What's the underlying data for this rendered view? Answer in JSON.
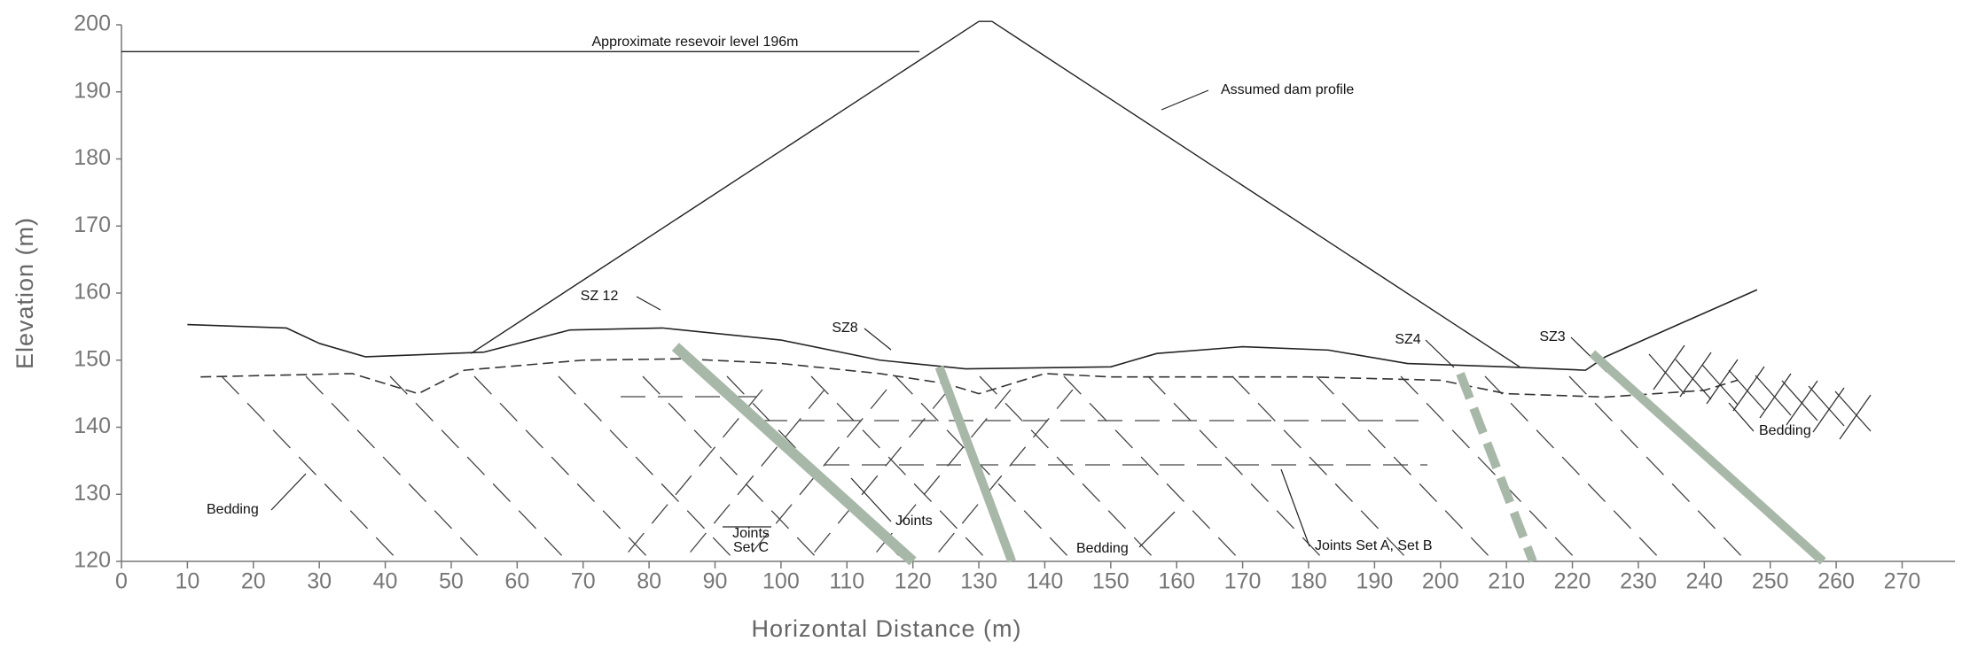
{
  "chart_data": {
    "type": "line",
    "x_label": "Horizontal Distance (m)",
    "y_label": "Elevation (m)",
    "xlim": [
      0,
      278
    ],
    "ylim": [
      120,
      200
    ],
    "xticks": [
      0,
      10,
      20,
      30,
      40,
      50,
      60,
      70,
      80,
      90,
      100,
      110,
      120,
      130,
      140,
      150,
      160,
      170,
      180,
      190,
      200,
      210,
      220,
      230,
      240,
      250,
      260,
      270
    ],
    "yticks": [
      120,
      130,
      140,
      150,
      160,
      170,
      180,
      190,
      200
    ],
    "series": [
      {
        "color": "#222222",
        "line_width": 1.4,
        "x": [
          0,
          121
        ],
        "values": [
          196,
          196
        ]
      },
      {
        "color": "#222222",
        "line_width": 1.4,
        "x": [
          53,
          130,
          132,
          212
        ],
        "values": [
          151,
          200.5,
          200.5,
          149
        ]
      },
      {
        "color": "#222222",
        "line_width": 1.6,
        "x": [
          10,
          25,
          30,
          37,
          45,
          55,
          68,
          82,
          100,
          115,
          128,
          150,
          157,
          170,
          183,
          195,
          210,
          222,
          225,
          248
        ],
        "values": [
          155.3,
          154.8,
          152.5,
          150.5,
          150.8,
          151.2,
          154.5,
          154.8,
          153,
          150,
          148.7,
          149,
          151,
          152,
          151.5,
          149.5,
          149,
          148.5,
          150.5,
          160.5
        ]
      },
      {
        "color": "#333333",
        "line_width": 1.6,
        "line_style": "dashed",
        "x": [
          12,
          35,
          45,
          52,
          70,
          85,
          100,
          115,
          125,
          130,
          140,
          150,
          160,
          180,
          200,
          210,
          225,
          240,
          245
        ],
        "values": [
          147.5,
          148,
          145,
          148.5,
          150,
          150.2,
          149.5,
          148,
          146.5,
          145,
          148,
          147.5,
          147.5,
          147.5,
          147,
          145,
          144.5,
          145.5,
          147
        ]
      },
      {
        "color": "#a8b8a8",
        "line_width": 12,
        "x": [
          84,
          120
        ],
        "values": [
          152,
          120
        ]
      },
      {
        "color": "#a8b8a8",
        "line_width": 10,
        "x": [
          124,
          135
        ],
        "values": [
          149,
          120
        ]
      },
      {
        "color": "#a8b8a8",
        "line_width": 10,
        "line_style": "dashed",
        "x": [
          203,
          214
        ],
        "values": [
          148,
          120
        ]
      },
      {
        "color": "#a8b8a8",
        "line_width": 10,
        "x": [
          223,
          258
        ],
        "values": [
          151,
          120
        ]
      }
    ],
    "annotations": [
      "Approximate resevoir level 196m",
      "Assumed dam profile",
      "SZ 12",
      "SZ8",
      "SZ4",
      "SZ3",
      "Bedding",
      "Bedding",
      "Bedding",
      "Joints",
      "Joints",
      "Set C",
      "Joints Set A, Set B"
    ]
  }
}
